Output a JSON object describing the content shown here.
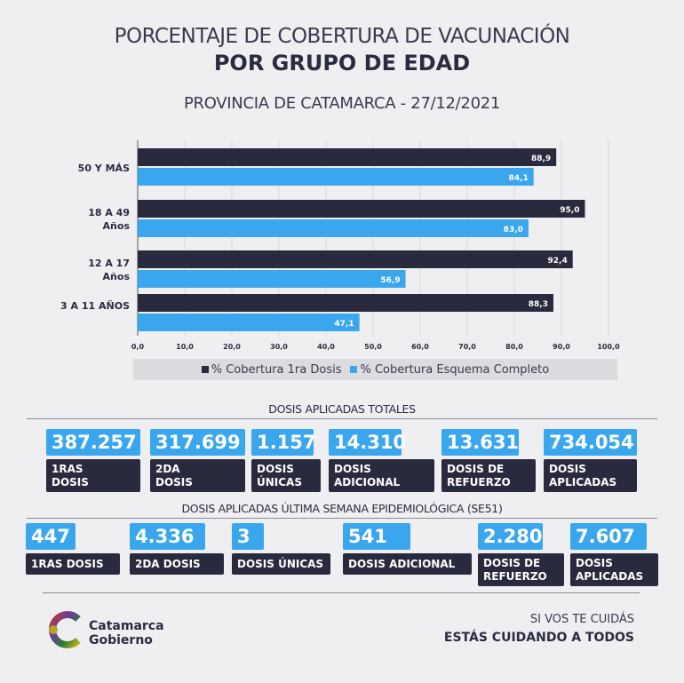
{
  "header": {
    "title_line1": "PORCENTAJE DE COBERTURA DE VACUNACIÓN",
    "title_line2": "POR GRUPO DE EDAD",
    "subtitle": "PROVINCIA DE CATAMARCA - 27/12/2021"
  },
  "chart_data": {
    "type": "bar",
    "orientation": "horizontal",
    "categories": [
      "50 Y MÁS",
      "18 A 49 Años",
      "12 A 17 Años",
      "3 A 11 AÑOS"
    ],
    "category_lines": [
      [
        "50 Y MÁS"
      ],
      [
        "18 A 49",
        "Años"
      ],
      [
        "12 A 17",
        "Años"
      ],
      [
        "3 A 11 AÑOS"
      ]
    ],
    "series": [
      {
        "name": "% Cobertura 1ra Dosis",
        "values": [
          88.9,
          95.0,
          92.4,
          88.3
        ],
        "labels": [
          "88,9",
          "95,0",
          "92,4",
          "88,3"
        ],
        "color": "#2a2a3e"
      },
      {
        "name": "% Cobertura Esquema Completo",
        "values": [
          84.1,
          83.0,
          56.9,
          47.1
        ],
        "labels": [
          "84,1",
          "83,0",
          "56,9",
          "47,1"
        ],
        "color": "#3aa6ee"
      }
    ],
    "xlim": [
      0,
      100
    ],
    "xticks": [
      "0,0",
      "10,0",
      "20,0",
      "30,0",
      "40,0",
      "50,0",
      "60,0",
      "70,0",
      "80,0",
      "90,0",
      "100,0"
    ],
    "grid": true,
    "legend": "bottom"
  },
  "totals": {
    "heading": "DOSIS APLICADAS TOTALES",
    "items": [
      {
        "value": "387.257",
        "label": [
          "1RAS",
          "DOSIS"
        ]
      },
      {
        "value": "317.699",
        "label": [
          "2DA",
          "DOSIS"
        ]
      },
      {
        "value": "1.157",
        "label": [
          "DOSIS",
          "ÚNICAS"
        ]
      },
      {
        "value": "14.310",
        "label": [
          "DOSIS",
          "ADICIONAL"
        ]
      },
      {
        "value": "13.631",
        "label": [
          "DOSIS DE",
          "REFUERZO"
        ]
      },
      {
        "value": "734.054",
        "label": [
          "DOSIS",
          "APLICADAS"
        ]
      }
    ]
  },
  "week": {
    "heading": "DOSIS APLICADAS ÚLTIMA SEMANA EPIDEMIOLÓGICA (SE51)",
    "items": [
      {
        "value": "447",
        "label": [
          "1RAS DOSIS"
        ]
      },
      {
        "value": "4.336",
        "label": [
          "2DA DOSIS"
        ]
      },
      {
        "value": "3",
        "label": [
          "DOSIS ÚNICAS"
        ]
      },
      {
        "value": "541",
        "label": [
          "DOSIS ADICIONAL"
        ]
      },
      {
        "value": "2.280",
        "label": [
          "DOSIS DE",
          "REFUERZO"
        ]
      },
      {
        "value": "7.607",
        "label": [
          "DOSIS",
          "APLICADAS"
        ]
      }
    ]
  },
  "footer": {
    "brand_line1": "Catamarca",
    "brand_line2": "Gobierno",
    "slogan_line1": "SI VOS TE CUIDÁS",
    "slogan_line2": "ESTÁS CUIDANDO A TODOS"
  }
}
